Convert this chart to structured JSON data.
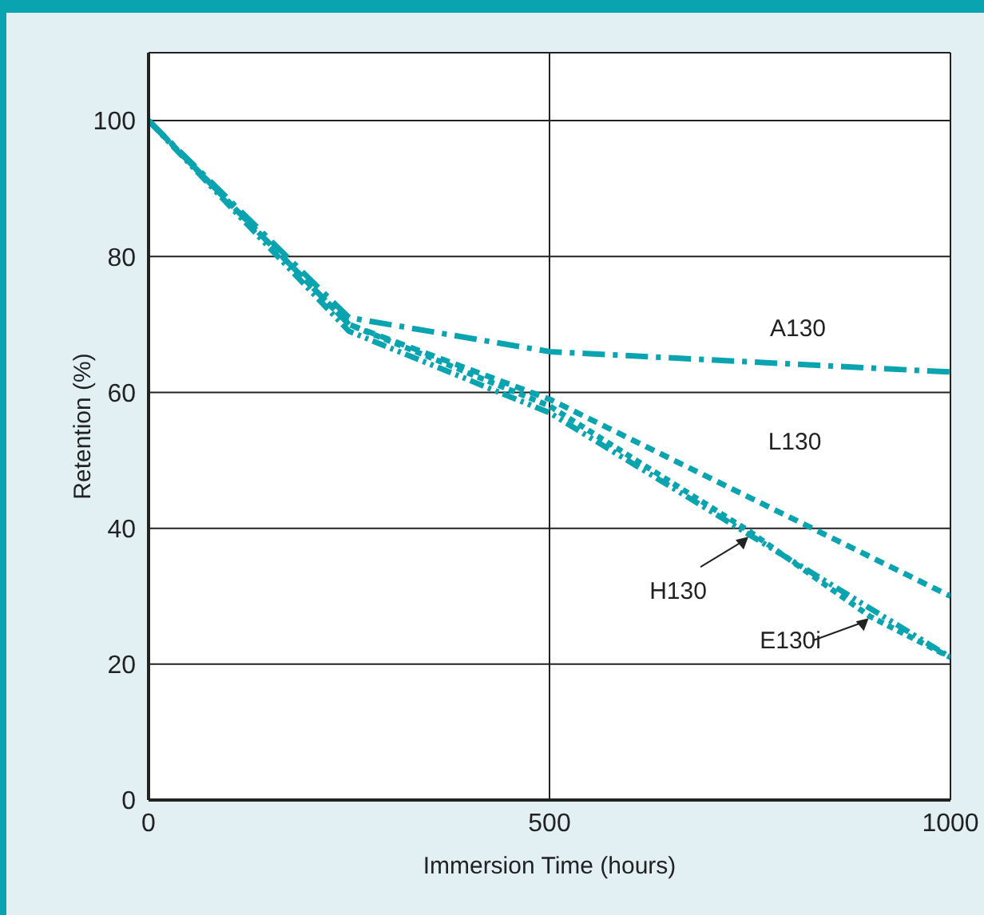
{
  "chart_data": {
    "type": "line",
    "xlabel": "Immersion Time (hours)",
    "ylabel": "Retention (%)",
    "xlim": [
      0,
      1000
    ],
    "xticks": [
      0,
      500,
      1000
    ],
    "ylim": [
      0,
      110
    ],
    "yticks": [
      0,
      20,
      40,
      60,
      80,
      100
    ],
    "grid": true,
    "marker": "none",
    "series": [
      {
        "name": "A130",
        "color": "#0aa3b0",
        "line_style": "dashed",
        "x": [
          0,
          250,
          500,
          750,
          1000
        ],
        "values": [
          100,
          71,
          66,
          64.5,
          63
        ]
      },
      {
        "name": "L130",
        "color": "#0aa3b0",
        "line_style": "dashed",
        "x": [
          0,
          250,
          500,
          750,
          1000
        ],
        "values": [
          100,
          70,
          59,
          44.5,
          30
        ]
      },
      {
        "name": "H130",
        "color": "#0aa3b0",
        "line_style": "dotted",
        "x": [
          0,
          250,
          500,
          750,
          1000
        ],
        "values": [
          100,
          69,
          57,
          39,
          21
        ]
      },
      {
        "name": "E130i",
        "color": "#0aa3b0",
        "line_style": "dotted",
        "x": [
          0,
          250,
          500,
          750,
          900,
          1000
        ],
        "values": [
          100,
          70,
          58,
          39.5,
          27,
          21
        ]
      }
    ]
  }
}
